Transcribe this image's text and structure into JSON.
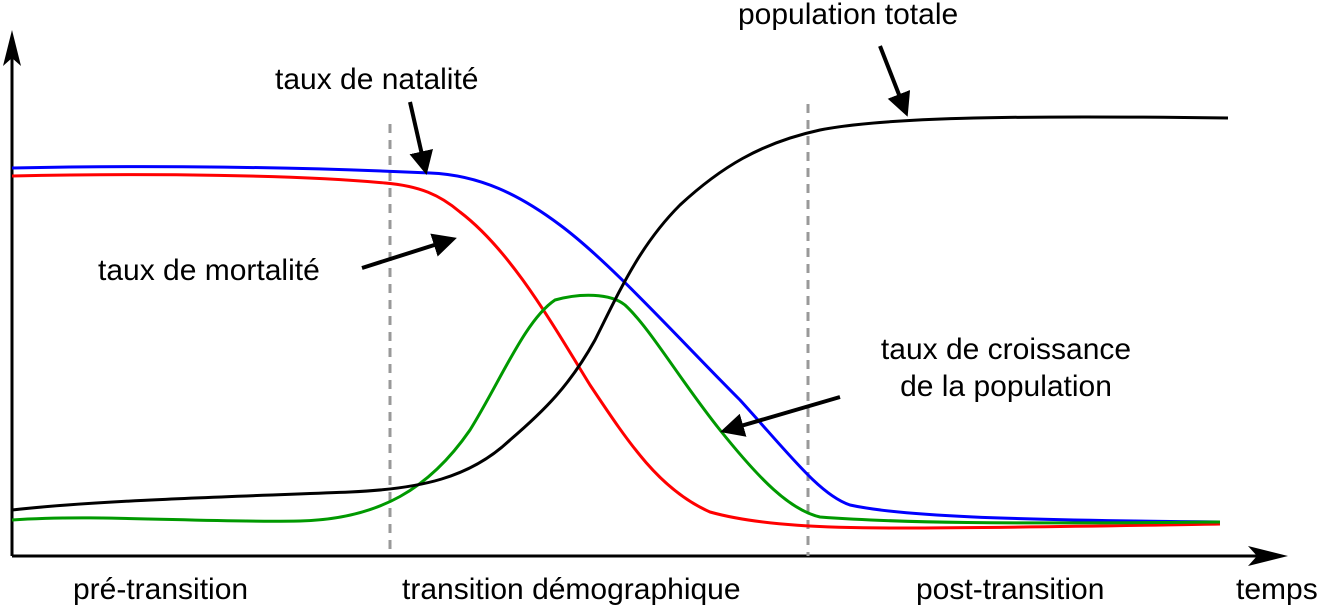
{
  "labels": {
    "population_totale": "population totale",
    "taux_natalite": "taux de natalité",
    "taux_mortalite": "taux de mortalité",
    "taux_croissance_line1": "taux de croissance",
    "taux_croissance_line2": "de la population",
    "x_axis": "temps"
  },
  "phases": [
    "pré-transition",
    "transition démographique",
    "post-transition"
  ],
  "colors": {
    "natalite": "#0000ff",
    "mortalite": "#ff0000",
    "croissance": "#009900",
    "population": "#000000",
    "phase_divider": "#999999",
    "axis": "#000000"
  }
}
